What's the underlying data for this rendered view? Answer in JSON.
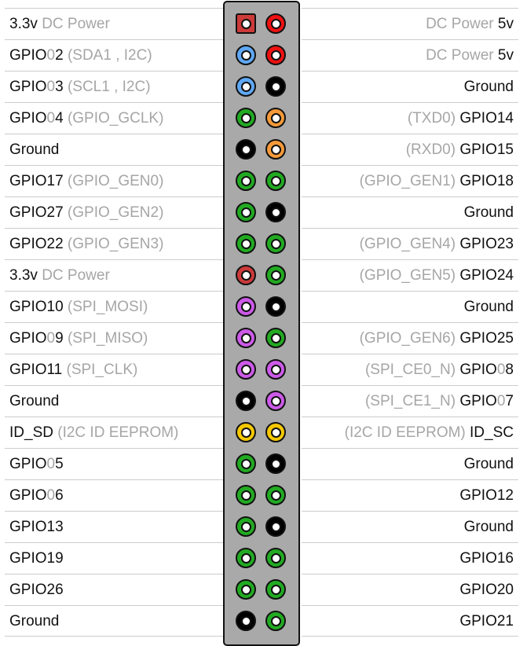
{
  "colors": {
    "power3v3": "#cc3a3a",
    "power5v": "#ee1111",
    "i2c": "#5fa8f5",
    "ground": "#000000",
    "uart": "#f59a3a",
    "gpio": "#22aa22",
    "spi": "#cc5ae8",
    "eeprom": "#f5c800"
  },
  "rows": [
    {
      "left": [
        {
          "t": "3.3v",
          "g": false
        },
        {
          "t": " DC Power",
          "g": true
        }
      ],
      "right": [
        {
          "t": "DC Power ",
          "g": true
        },
        {
          "t": "5v",
          "g": false
        }
      ],
      "pinL": "power3v3",
      "pinR": "power5v",
      "squareL": true
    },
    {
      "left": [
        {
          "t": "GPIO",
          "g": false
        },
        {
          "t": "0",
          "g": true
        },
        {
          "t": "2",
          "g": false
        },
        {
          "t": " (SDA1 , I2C)",
          "g": true
        }
      ],
      "right": [
        {
          "t": "DC Power ",
          "g": true
        },
        {
          "t": "5v",
          "g": false
        }
      ],
      "pinL": "i2c",
      "pinR": "power5v"
    },
    {
      "left": [
        {
          "t": "GPIO",
          "g": false
        },
        {
          "t": "0",
          "g": true
        },
        {
          "t": "3",
          "g": false
        },
        {
          "t": " (SCL1 , I2C)",
          "g": true
        }
      ],
      "right": [
        {
          "t": "Ground",
          "g": false
        }
      ],
      "pinL": "i2c",
      "pinR": "ground"
    },
    {
      "left": [
        {
          "t": "GPIO",
          "g": false
        },
        {
          "t": "0",
          "g": true
        },
        {
          "t": "4",
          "g": false
        },
        {
          "t": " (GPIO_GCLK)",
          "g": true
        }
      ],
      "right": [
        {
          "t": "(TXD0) ",
          "g": true
        },
        {
          "t": "GPIO14",
          "g": false
        }
      ],
      "pinL": "gpio",
      "pinR": "uart"
    },
    {
      "left": [
        {
          "t": "Ground",
          "g": false
        }
      ],
      "right": [
        {
          "t": "(RXD0) ",
          "g": true
        },
        {
          "t": "GPIO15",
          "g": false
        }
      ],
      "pinL": "ground",
      "pinR": "uart"
    },
    {
      "left": [
        {
          "t": "GPIO17",
          "g": false
        },
        {
          "t": " (GPIO_GEN0)",
          "g": true
        }
      ],
      "right": [
        {
          "t": "(GPIO_GEN1) ",
          "g": true
        },
        {
          "t": "GPIO18",
          "g": false
        }
      ],
      "pinL": "gpio",
      "pinR": "gpio"
    },
    {
      "left": [
        {
          "t": "GPIO27",
          "g": false
        },
        {
          "t": " (GPIO_GEN2)",
          "g": true
        }
      ],
      "right": [
        {
          "t": "Ground",
          "g": false
        }
      ],
      "pinL": "gpio",
      "pinR": "ground"
    },
    {
      "left": [
        {
          "t": "GPIO22",
          "g": false
        },
        {
          "t": " (GPIO_GEN3)",
          "g": true
        }
      ],
      "right": [
        {
          "t": "(GPIO_GEN4) ",
          "g": true
        },
        {
          "t": "GPIO23",
          "g": false
        }
      ],
      "pinL": "gpio",
      "pinR": "gpio"
    },
    {
      "left": [
        {
          "t": "3.3v",
          "g": false
        },
        {
          "t": " DC Power",
          "g": true
        }
      ],
      "right": [
        {
          "t": "(GPIO_GEN5) ",
          "g": true
        },
        {
          "t": "GPIO24",
          "g": false
        }
      ],
      "pinL": "power3v3",
      "pinR": "gpio"
    },
    {
      "left": [
        {
          "t": "GPIO10",
          "g": false
        },
        {
          "t": " (SPI_MOSI)",
          "g": true
        }
      ],
      "right": [
        {
          "t": "Ground",
          "g": false
        }
      ],
      "pinL": "spi",
      "pinR": "ground"
    },
    {
      "left": [
        {
          "t": "GPIO",
          "g": false
        },
        {
          "t": "0",
          "g": true
        },
        {
          "t": "9",
          "g": false
        },
        {
          "t": " (SPI_MISO)",
          "g": true
        }
      ],
      "right": [
        {
          "t": "(GPIO_GEN6) ",
          "g": true
        },
        {
          "t": "GPIO25",
          "g": false
        }
      ],
      "pinL": "spi",
      "pinR": "gpio"
    },
    {
      "left": [
        {
          "t": "GPIO11",
          "g": false
        },
        {
          "t": " (SPI_CLK)",
          "g": true
        }
      ],
      "right": [
        {
          "t": "(SPI_CE0_N) ",
          "g": true
        },
        {
          "t": "GPIO",
          "g": false
        },
        {
          "t": "0",
          "g": true
        },
        {
          "t": "8",
          "g": false
        }
      ],
      "pinL": "spi",
      "pinR": "spi"
    },
    {
      "left": [
        {
          "t": "Ground",
          "g": false
        }
      ],
      "right": [
        {
          "t": "(SPI_CE1_N) ",
          "g": true
        },
        {
          "t": "GPIO",
          "g": false
        },
        {
          "t": "0",
          "g": true
        },
        {
          "t": "7",
          "g": false
        }
      ],
      "pinL": "ground",
      "pinR": "spi"
    },
    {
      "left": [
        {
          "t": "ID_SD",
          "g": false
        },
        {
          "t": " (I2C ID EEPROM)",
          "g": true
        }
      ],
      "right": [
        {
          "t": "(I2C ID EEPROM) ",
          "g": true
        },
        {
          "t": "ID_SC",
          "g": false
        }
      ],
      "pinL": "eeprom",
      "pinR": "eeprom"
    },
    {
      "left": [
        {
          "t": "GPIO",
          "g": false
        },
        {
          "t": "0",
          "g": true
        },
        {
          "t": "5",
          "g": false
        }
      ],
      "right": [
        {
          "t": "Ground",
          "g": false
        }
      ],
      "pinL": "gpio",
      "pinR": "ground"
    },
    {
      "left": [
        {
          "t": "GPIO",
          "g": false
        },
        {
          "t": "0",
          "g": true
        },
        {
          "t": "6",
          "g": false
        }
      ],
      "right": [
        {
          "t": "GPIO12",
          "g": false
        }
      ],
      "pinL": "gpio",
      "pinR": "gpio"
    },
    {
      "left": [
        {
          "t": "GPIO13",
          "g": false
        }
      ],
      "right": [
        {
          "t": "Ground",
          "g": false
        }
      ],
      "pinL": "gpio",
      "pinR": "ground"
    },
    {
      "left": [
        {
          "t": "GPIO19",
          "g": false
        }
      ],
      "right": [
        {
          "t": "GPIO16",
          "g": false
        }
      ],
      "pinL": "gpio",
      "pinR": "gpio"
    },
    {
      "left": [
        {
          "t": "GPIO26",
          "g": false
        }
      ],
      "right": [
        {
          "t": "GPIO20",
          "g": false
        }
      ],
      "pinL": "gpio",
      "pinR": "gpio"
    },
    {
      "left": [
        {
          "t": "Ground",
          "g": false
        }
      ],
      "right": [
        {
          "t": "GPIO21",
          "g": false
        }
      ],
      "pinL": "ground",
      "pinR": "gpio"
    }
  ]
}
